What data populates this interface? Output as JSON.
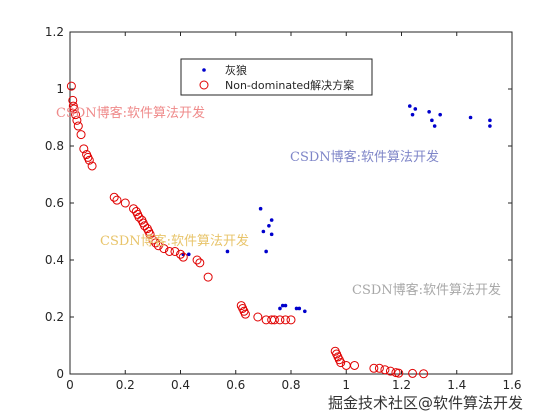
{
  "chart_data": {
    "type": "scatter",
    "title": "",
    "xlabel": "",
    "ylabel": "",
    "xlim": [
      0,
      1.6
    ],
    "ylim": [
      0,
      1.2
    ],
    "xticks": [
      0,
      0.2,
      0.4,
      0.6,
      0.8,
      1,
      1.2,
      1.4,
      1.6
    ],
    "yticks": [
      0,
      0.2,
      0.4,
      0.6,
      0.8,
      1,
      1.2
    ],
    "xtick_labels": [
      "0",
      "0.2",
      "0.4",
      "0.6",
      "0.8",
      "1",
      "1.2",
      "1.4",
      "1.6"
    ],
    "ytick_labels": [
      "0",
      "0.2",
      "0.4",
      "0.6",
      "0.8",
      "1",
      "1.2"
    ],
    "grid": false,
    "legend_position": "top-center",
    "series": [
      {
        "name": "灰狼",
        "marker": "dot",
        "color": "#0000cc",
        "points": [
          [
            0.41,
            0.42
          ],
          [
            0.43,
            0.42
          ],
          [
            0.57,
            0.43
          ],
          [
            0.69,
            0.58
          ],
          [
            0.7,
            0.5
          ],
          [
            0.71,
            0.43
          ],
          [
            0.72,
            0.52
          ],
          [
            0.73,
            0.54
          ],
          [
            0.73,
            0.49
          ],
          [
            0.76,
            0.23
          ],
          [
            0.77,
            0.24
          ],
          [
            0.78,
            0.24
          ],
          [
            0.82,
            0.23
          ],
          [
            0.83,
            0.23
          ],
          [
            0.85,
            0.22
          ],
          [
            1.23,
            0.94
          ],
          [
            1.25,
            0.93
          ],
          [
            1.24,
            0.91
          ],
          [
            1.3,
            0.92
          ],
          [
            1.31,
            0.89
          ],
          [
            1.32,
            0.87
          ],
          [
            1.34,
            0.91
          ],
          [
            1.45,
            0.9
          ],
          [
            1.52,
            0.89
          ],
          [
            1.52,
            0.87
          ]
        ]
      },
      {
        "name": "Non-dominated解决方案",
        "marker": "circle",
        "color": "#e00000",
        "points": [
          [
            0.005,
            1.01
          ],
          [
            0.01,
            0.96
          ],
          [
            0.012,
            0.94
          ],
          [
            0.015,
            0.93
          ],
          [
            0.02,
            0.91
          ],
          [
            0.025,
            0.89
          ],
          [
            0.03,
            0.87
          ],
          [
            0.04,
            0.84
          ],
          [
            0.05,
            0.79
          ],
          [
            0.06,
            0.77
          ],
          [
            0.065,
            0.76
          ],
          [
            0.07,
            0.75
          ],
          [
            0.08,
            0.73
          ],
          [
            0.16,
            0.62
          ],
          [
            0.17,
            0.61
          ],
          [
            0.2,
            0.6
          ],
          [
            0.23,
            0.58
          ],
          [
            0.24,
            0.57
          ],
          [
            0.245,
            0.56
          ],
          [
            0.25,
            0.55
          ],
          [
            0.26,
            0.54
          ],
          [
            0.265,
            0.53
          ],
          [
            0.27,
            0.52
          ],
          [
            0.28,
            0.51
          ],
          [
            0.285,
            0.5
          ],
          [
            0.29,
            0.49
          ],
          [
            0.3,
            0.47
          ],
          [
            0.31,
            0.46
          ],
          [
            0.32,
            0.45
          ],
          [
            0.34,
            0.44
          ],
          [
            0.36,
            0.43
          ],
          [
            0.38,
            0.43
          ],
          [
            0.4,
            0.42
          ],
          [
            0.41,
            0.41
          ],
          [
            0.46,
            0.4
          ],
          [
            0.47,
            0.39
          ],
          [
            0.5,
            0.34
          ],
          [
            0.62,
            0.24
          ],
          [
            0.625,
            0.23
          ],
          [
            0.63,
            0.22
          ],
          [
            0.635,
            0.21
          ],
          [
            0.68,
            0.2
          ],
          [
            0.71,
            0.19
          ],
          [
            0.73,
            0.19
          ],
          [
            0.74,
            0.19
          ],
          [
            0.76,
            0.19
          ],
          [
            0.78,
            0.19
          ],
          [
            0.8,
            0.19
          ],
          [
            0.96,
            0.08
          ],
          [
            0.965,
            0.07
          ],
          [
            0.97,
            0.06
          ],
          [
            0.975,
            0.05
          ],
          [
            0.98,
            0.04
          ],
          [
            1.0,
            0.03
          ],
          [
            1.03,
            0.03
          ],
          [
            1.1,
            0.02
          ],
          [
            1.12,
            0.02
          ],
          [
            1.14,
            0.015
          ],
          [
            1.16,
            0.01
          ],
          [
            1.18,
            0.005
          ],
          [
            1.19,
            0.003
          ],
          [
            1.24,
            0.002
          ],
          [
            1.28,
            0.001
          ]
        ]
      }
    ]
  },
  "watermarks": [
    "CSDN博客:软件算法开发",
    "CSDN博客:软件算法开发",
    "CSDN博客:软件算法开发",
    "CSDN博客:软件算法开发"
  ],
  "footer_watermark": "掘金技术社区@软件算法开发"
}
